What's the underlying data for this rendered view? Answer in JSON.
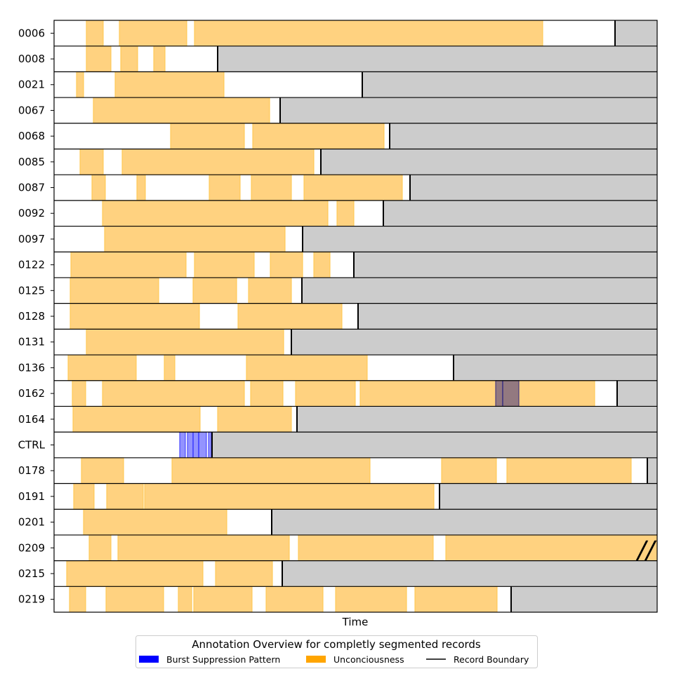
{
  "chart_data": {
    "type": "timeline",
    "title": "",
    "xlabel": "Time",
    "ylabel": "",
    "xlim": [
      0,
      859
    ],
    "legend": {
      "title": "Annotation Overview for completly segmented records",
      "placement": "bottom-center",
      "entries": [
        {
          "label": "Burst Suppression Pattern",
          "kind": "burst",
          "color": "#0000ff"
        },
        {
          "label": "Unconciousness",
          "kind": "uncon",
          "color": "#ffa500"
        },
        {
          "label": "Record Boundary",
          "kind": "boundary",
          "color": "#000000"
        }
      ]
    },
    "colors": {
      "uncon_fill": "#ffd280",
      "uncon_edge": "#ffc54a",
      "burst_fill": "#8080ff",
      "burst_edge": "#3333ff",
      "beyond_record": "#cccccc"
    },
    "records": [
      {
        "id": "0006",
        "uncon": [
          [
            46,
            70
          ],
          [
            93,
            189
          ],
          [
            200,
            696
          ]
        ],
        "burst": [],
        "end": 799
      },
      {
        "id": "0008",
        "uncon": [
          [
            46,
            81
          ],
          [
            95,
            119
          ],
          [
            142,
            158
          ]
        ],
        "burst": [],
        "end": 233
      },
      {
        "id": "0021",
        "uncon": [
          [
            32,
            42
          ],
          [
            87,
            242
          ]
        ],
        "burst": [],
        "end": 439
      },
      {
        "id": "0067",
        "uncon": [
          [
            56,
            307
          ]
        ],
        "burst": [],
        "end": 322
      },
      {
        "id": "0068",
        "uncon": [
          [
            166,
            271
          ],
          [
            283,
            470
          ]
        ],
        "burst": [],
        "end": 478
      },
      {
        "id": "0085",
        "uncon": [
          [
            37,
            70
          ],
          [
            97,
            370
          ]
        ],
        "burst": [],
        "end": 380
      },
      {
        "id": "0087",
        "uncon": [
          [
            54,
            73
          ],
          [
            118,
            130
          ],
          [
            221,
            265
          ],
          [
            281,
            338
          ],
          [
            356,
            496
          ]
        ],
        "burst": [],
        "end": 507
      },
      {
        "id": "0092",
        "uncon": [
          [
            69,
            390
          ],
          [
            403,
            427
          ]
        ],
        "burst": [],
        "end": 469
      },
      {
        "id": "0097",
        "uncon": [
          [
            72,
            329
          ]
        ],
        "burst": [],
        "end": 354
      },
      {
        "id": "0122",
        "uncon": [
          [
            24,
            188
          ],
          [
            200,
            285
          ],
          [
            308,
            354
          ],
          [
            370,
            393
          ]
        ],
        "burst": [],
        "end": 427
      },
      {
        "id": "0125",
        "uncon": [
          [
            23,
            149
          ],
          [
            198,
            260
          ],
          [
            277,
            338
          ]
        ],
        "burst": [],
        "end": 353
      },
      {
        "id": "0128",
        "uncon": [
          [
            23,
            207
          ],
          [
            262,
            410
          ]
        ],
        "burst": [],
        "end": 433
      },
      {
        "id": "0131",
        "uncon": [
          [
            46,
            327
          ]
        ],
        "burst": [],
        "end": 338
      },
      {
        "id": "0136",
        "uncon": [
          [
            20,
            117
          ],
          [
            157,
            172
          ],
          [
            274,
            446
          ]
        ],
        "burst": [],
        "end": 569
      },
      {
        "id": "0162",
        "uncon": [
          [
            26,
            45
          ],
          [
            69,
            271
          ],
          [
            280,
            326
          ],
          [
            344,
            429
          ],
          [
            436,
            770
          ]
        ],
        "burst": [
          [
            629,
            639
          ],
          [
            639,
            662
          ]
        ],
        "end": 802
      },
      {
        "id": "0164",
        "uncon": [
          [
            27,
            208
          ],
          [
            233,
            338
          ]
        ],
        "burst": [],
        "end": 346
      },
      {
        "id": "CTRL",
        "uncon": [],
        "burst": [
          [
            179,
            187
          ],
          [
            190,
            198
          ],
          [
            198,
            206
          ],
          [
            206,
            217
          ],
          [
            220,
            224
          ]
        ],
        "end": 225
      },
      {
        "id": "0178",
        "uncon": [
          [
            39,
            99
          ],
          [
            168,
            450
          ],
          [
            552,
            630
          ],
          [
            645,
            822
          ]
        ],
        "burst": [],
        "end": 845
      },
      {
        "id": "0191",
        "uncon": [
          [
            28,
            57
          ],
          [
            75,
            127
          ],
          [
            129,
            541
          ]
        ],
        "burst": [],
        "end": 549
      },
      {
        "id": "0201",
        "uncon": [
          [
            42,
            246
          ]
        ],
        "burst": [],
        "end": 310
      },
      {
        "id": "0209",
        "uncon": [
          [
            50,
            81
          ],
          [
            91,
            335
          ],
          [
            348,
            540
          ],
          [
            558,
            859
          ]
        ],
        "burst": [],
        "end": null,
        "truncated": true,
        "break_mark": "//"
      },
      {
        "id": "0215",
        "uncon": [
          [
            18,
            212
          ],
          [
            230,
            311
          ]
        ],
        "burst": [],
        "end": 325
      },
      {
        "id": "0219",
        "uncon": [
          [
            22,
            45
          ],
          [
            74,
            156
          ],
          [
            177,
            196
          ],
          [
            199,
            282
          ],
          [
            302,
            383
          ],
          [
            401,
            502
          ],
          [
            514,
            631
          ]
        ],
        "burst": [],
        "end": 651
      }
    ]
  }
}
